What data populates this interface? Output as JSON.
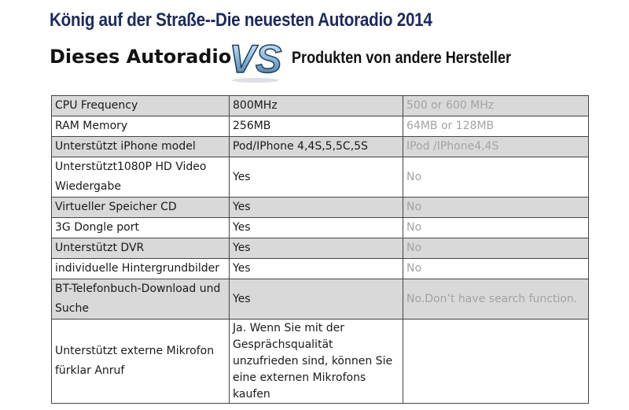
{
  "header": {
    "headline": "König auf der Straße--Die neuesten Autoradio  2014",
    "subtitle_left": "Dieses Autoradio",
    "vs_logo": "VS",
    "subtitle_right": "Produkten von andere Hersteller"
  },
  "colors": {
    "headline": "#1c2a5c",
    "shaded_row": "#d9d9d9",
    "competitor_text": "#a3a3a3",
    "vs_logo": "#7fb0d6"
  },
  "table": {
    "rows": [
      {
        "feature": "CPU Frequency",
        "this_radio": "800MHz",
        "other": "500 or 600 MHz",
        "shaded": true
      },
      {
        "feature": "RAM Memory",
        "this_radio": "256MB",
        "other": "64MB or 128MB",
        "shaded": false
      },
      {
        "feature": "Unterstützt iPhone model",
        "this_radio": "Pod/IPhone 4,4S,5,5C,5S",
        "other": "IPod /IPhone4,4S",
        "shaded": true
      },
      {
        "feature": "Unterstützt1080P HD Video Wiedergabe",
        "this_radio": "Yes",
        "other": "No",
        "shaded": false
      },
      {
        "feature": "Virtueller Speicher CD",
        "this_radio": "Yes",
        "other": "No",
        "shaded": true
      },
      {
        "feature": "3G Dongle port",
        "this_radio": "Yes",
        "other": "No",
        "shaded": false
      },
      {
        "feature": "Unterstützt DVR",
        "this_radio": "Yes",
        "other": "No",
        "shaded": true
      },
      {
        "feature": "individuelle Hintergrundbilder",
        "this_radio": "Yes",
        "other": "No",
        "shaded": false
      },
      {
        "feature": "BT-Telefonbuch-Download und Suche",
        "this_radio": "Yes",
        "other": "No.Don’t have search function.",
        "shaded": true
      },
      {
        "feature": "Unterstützt  externe Mikrofon fürklar Anruf",
        "this_radio": "Ja. Wenn Sie mit der Gesprächsqualität unzufrieden sind, können Sie eine externen Mikrofons kaufen",
        "other": "",
        "shaded": false
      }
    ]
  }
}
